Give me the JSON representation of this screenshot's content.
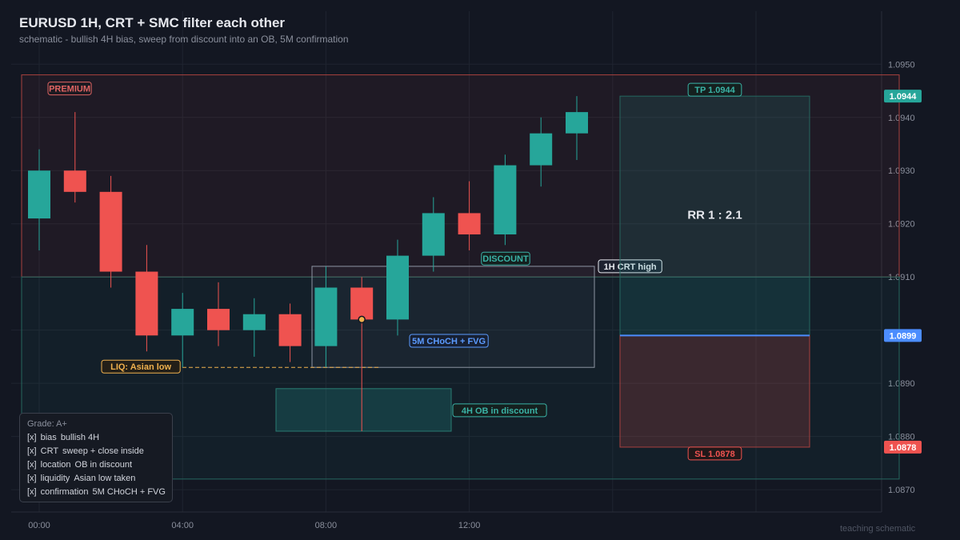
{
  "header": {
    "title": "EURUSD 1H, CRT + SMC filter each other",
    "subtitle": "schematic  -  bullish 4H bias, sweep from discount into an OB, 5M confirmation"
  },
  "footer": "teaching schematic",
  "chart_data": {
    "type": "candlestick",
    "instrument": "EURUSD",
    "timeframe": "1H",
    "ylim": [
      1.0866,
      1.096
    ],
    "y_ticks": [
      {
        "value": 1.087,
        "label": "1.0870"
      },
      {
        "value": 1.088,
        "label": "1.0880"
      },
      {
        "value": 1.089,
        "label": "1.0890"
      },
      {
        "value": 1.09,
        "label": ""
      },
      {
        "value": 1.091,
        "label": "1.0910"
      },
      {
        "value": 1.092,
        "label": "1.0920"
      },
      {
        "value": 1.093,
        "label": "1.0930"
      },
      {
        "value": 1.094,
        "label": "1.0940"
      },
      {
        "value": 1.095,
        "label": "1.0950"
      }
    ],
    "x_ticks": [
      {
        "index": 0,
        "label": "00:00"
      },
      {
        "index": 4,
        "label": "04:00"
      },
      {
        "index": 8,
        "label": "08:00"
      },
      {
        "index": 12,
        "label": "12:00"
      },
      {
        "index": 16,
        "label": ""
      },
      {
        "index": 20,
        "label": ""
      }
    ],
    "candles": [
      {
        "o": 1.0921,
        "h": 1.0934,
        "l": 1.0915,
        "c": 1.093
      },
      {
        "o": 1.093,
        "h": 1.0941,
        "l": 1.0924,
        "c": 1.0926
      },
      {
        "o": 1.0926,
        "h": 1.0929,
        "l": 1.0908,
        "c": 1.0911
      },
      {
        "o": 1.0911,
        "h": 1.0916,
        "l": 1.0896,
        "c": 1.0899
      },
      {
        "o": 1.0899,
        "h": 1.0907,
        "l": 1.0893,
        "c": 1.0904
      },
      {
        "o": 1.0904,
        "h": 1.0909,
        "l": 1.0897,
        "c": 1.09
      },
      {
        "o": 1.09,
        "h": 1.0906,
        "l": 1.0895,
        "c": 1.0903
      },
      {
        "o": 1.0903,
        "h": 1.0905,
        "l": 1.0894,
        "c": 1.0897
      },
      {
        "o": 1.0897,
        "h": 1.0912,
        "l": 1.0893,
        "c": 1.0908
      },
      {
        "o": 1.0908,
        "h": 1.091,
        "l": 1.0881,
        "c": 1.0902
      },
      {
        "o": 1.0902,
        "h": 1.0917,
        "l": 1.0899,
        "c": 1.0914
      },
      {
        "o": 1.0914,
        "h": 1.0925,
        "l": 1.0911,
        "c": 1.0922
      },
      {
        "o": 1.0922,
        "h": 1.0928,
        "l": 1.0915,
        "c": 1.0918
      },
      {
        "o": 1.0918,
        "h": 1.0933,
        "l": 1.0916,
        "c": 1.0931
      },
      {
        "o": 1.0931,
        "h": 1.094,
        "l": 1.0927,
        "c": 1.0937
      },
      {
        "o": 1.0937,
        "h": 1.0944,
        "l": 1.0932,
        "c": 1.0941
      }
    ],
    "zones": {
      "premium": {
        "label": "PREMIUM",
        "from": 1.091,
        "to": 1.0948
      },
      "discount": {
        "label": "DISCOUNT",
        "from": 1.0872,
        "to": 1.091
      },
      "crt_range": {
        "label": "1H CRT high",
        "high": 1.0912,
        "low": 1.0893
      },
      "liquidity": {
        "label": "LIQ: Asian low",
        "level": 1.0893
      },
      "order_block": {
        "label": "4H OB in discount",
        "high": 1.0889,
        "low": 1.0881
      },
      "confirmation": {
        "label": "5M CHoCH + FVG"
      },
      "entry_marker": {
        "price": 1.0902
      }
    },
    "trade": {
      "rr_label": "RR 1 : 2.1",
      "tp": 1.0944,
      "tp_label": "TP 1.0944",
      "tp_tag": "1.0944",
      "entry": 1.0899,
      "entry_tag": "1.0899",
      "sl": 1.0878,
      "sl_label": "SL 1.0878",
      "sl_tag": "1.0878"
    },
    "grid": true,
    "colors": {
      "bull": "#26a69a",
      "bear": "#ef5350",
      "entry": "#4c8dff",
      "liquidity": "#f0b14e",
      "background": "#131722"
    }
  },
  "checklist": {
    "title": "Grade: A+",
    "items": [
      {
        "mark": "[x]",
        "key": "bias",
        "value": "bullish 4H"
      },
      {
        "mark": "[x]",
        "key": "CRT",
        "value": "sweep + close inside"
      },
      {
        "mark": "[x]",
        "key": "location",
        "value": "OB in discount"
      },
      {
        "mark": "[x]",
        "key": "liquidity",
        "value": "Asian low taken"
      },
      {
        "mark": "[x]",
        "key": "confirmation",
        "value": "5M CHoCH + FVG"
      }
    ]
  }
}
